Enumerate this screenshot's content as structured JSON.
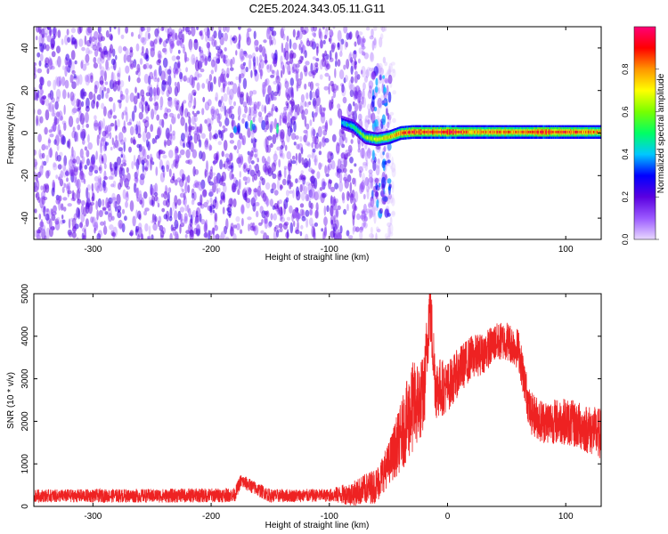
{
  "figure": {
    "title": "C2E5.2024.343.05.11.G11"
  },
  "chart_data": [
    {
      "type": "heatmap",
      "title": "",
      "xlabel": "Height of straight line (km)",
      "ylabel": "Frequency (Hz)",
      "xlim": [
        -350,
        130
      ],
      "ylim": [
        -50,
        50
      ],
      "xticks": [
        -300,
        -200,
        -100,
        0,
        100
      ],
      "yticks": [
        -40,
        -20,
        0,
        20,
        40
      ],
      "grid": false,
      "colorbar": {
        "label": "Normalized spectral amplitude",
        "range": [
          0.0,
          1.0
        ],
        "ticks": [
          0.0,
          0.2,
          0.4,
          0.6,
          0.8
        ],
        "colormap": [
          "#e8d8ff",
          "#9b59ff",
          "#5a00e0",
          "#0000ff",
          "#00c8ff",
          "#00ff64",
          "#78ff00",
          "#ffff00",
          "#ff9600",
          "#ff0000",
          "#ff0078"
        ]
      },
      "regions": [
        {
          "x_range": [
            -350,
            -75
          ],
          "y_range": [
            -50,
            50
          ],
          "amplitude": 0.15,
          "pattern": "speckled noise"
        },
        {
          "x_range": [
            -75,
            -45
          ],
          "y_range": [
            -50,
            50
          ],
          "amplitude": 0.1,
          "pattern": "fading noise"
        },
        {
          "x_range": [
            -65,
            -48
          ],
          "y_range": [
            -40,
            30
          ],
          "amplitude": 0.25,
          "pattern": "vertical broadband streak"
        },
        {
          "x_range": [
            -185,
            -125
          ],
          "y_range": [
            1,
            4
          ],
          "amplitude": 0.35,
          "pattern": "weak spots near 2 Hz"
        },
        {
          "x_range": [
            -90,
            130
          ],
          "y_range": [
            -2,
            4
          ],
          "amplitude": 0.9,
          "pattern": "strong carrier band near 0-2 Hz"
        }
      ],
      "carrier_line": {
        "x": [
          -90,
          -80,
          -70,
          -60,
          -50,
          -40,
          -30,
          -20,
          -10,
          0,
          20,
          40,
          60,
          80,
          100,
          130
        ],
        "y": [
          5,
          3,
          -2,
          -3,
          -2,
          0,
          0.5,
          0.5,
          0.5,
          0.5,
          0.5,
          0.5,
          0.5,
          0.5,
          0.5,
          0.5
        ],
        "amplitude": [
          0.4,
          0.5,
          0.6,
          0.7,
          0.75,
          0.85,
          0.9,
          0.9,
          0.9,
          0.95,
          0.8,
          0.85,
          0.8,
          0.9,
          0.85,
          0.8
        ]
      }
    },
    {
      "type": "line",
      "title": "",
      "xlabel": "Height of straight line (km)",
      "ylabel": "SNR (10 * v/v)",
      "xlim": [
        -350,
        130
      ],
      "ylim": [
        0,
        5000
      ],
      "xticks": [
        -300,
        -200,
        -100,
        0,
        100
      ],
      "yticks": [
        0,
        1000,
        2000,
        3000,
        4000,
        5000
      ],
      "grid": false,
      "series": [
        {
          "color": "#ee2222",
          "x": [
            -350,
            -300,
            -250,
            -200,
            -180,
            -175,
            -150,
            -100,
            -80,
            -60,
            -50,
            -40,
            -30,
            -20,
            -15,
            -10,
            0,
            10,
            20,
            30,
            40,
            50,
            60,
            70,
            80,
            90,
            100,
            110,
            120,
            130
          ],
          "y": [
            250,
            250,
            250,
            260,
            270,
            600,
            250,
            260,
            300,
            500,
            1000,
            1600,
            2300,
            2600,
            4800,
            2800,
            2800,
            3200,
            3500,
            3600,
            3850,
            3900,
            3700,
            2200,
            2000,
            2000,
            2000,
            1900,
            1800,
            1700
          ],
          "noise_band": [
            -350,
            -200,
            -100,
            -50,
            -30,
            0,
            40,
            70,
            130
          ],
          "noise_amp": [
            150,
            170,
            150,
            500,
            1100,
            600,
            450,
            500,
            600
          ]
        }
      ]
    }
  ]
}
